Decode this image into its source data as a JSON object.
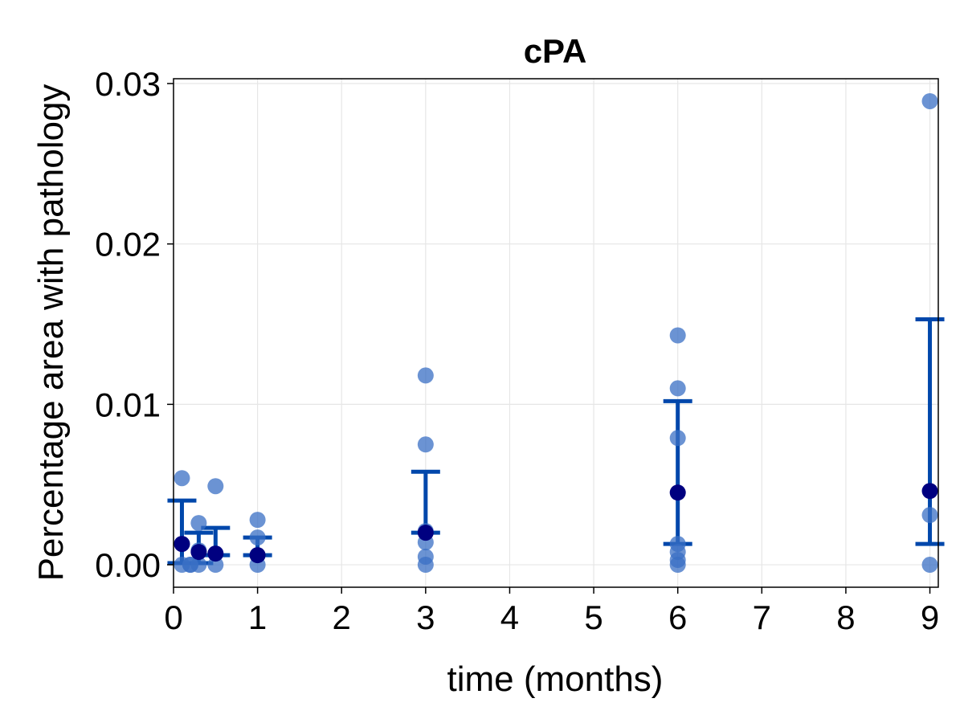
{
  "chart_data": {
    "type": "scatter",
    "title": "cPA",
    "xlabel": "time (months)",
    "ylabel": "Percentage area with pathology",
    "xlim": [
      0,
      9.1
    ],
    "ylim": [
      -0.0014,
      0.0303
    ],
    "xticks": [
      0,
      1,
      2,
      3,
      4,
      5,
      6,
      7,
      8,
      9
    ],
    "xtick_labels": [
      "0",
      "1",
      "2",
      "3",
      "4",
      "5",
      "6",
      "7",
      "8",
      "9"
    ],
    "yticks": [
      0.0,
      0.01,
      0.02,
      0.03
    ],
    "ytick_labels": [
      "0.00",
      "0.01",
      "0.02",
      "0.03"
    ],
    "grid": true,
    "legend": false,
    "colors": {
      "points": "#3a6fc4",
      "means": "#000080",
      "error_bars": "#0047ab",
      "grid": "#e6e6e6"
    },
    "series": [
      {
        "role": "individual",
        "points": [
          {
            "x": 0.1,
            "y": 0.0054
          },
          {
            "x": 0.1,
            "y": 0.0013
          },
          {
            "x": 0.1,
            "y": 0.0
          },
          {
            "x": 0.2,
            "y": 0.0
          },
          {
            "x": 0.2,
            "y": 0.0
          },
          {
            "x": 0.3,
            "y": 0.0026
          },
          {
            "x": 0.3,
            "y": 0.0009
          },
          {
            "x": 0.3,
            "y": 0.0
          },
          {
            "x": 0.5,
            "y": 0.0049
          },
          {
            "x": 0.5,
            "y": 0.0007
          },
          {
            "x": 0.5,
            "y": 0.0
          },
          {
            "x": 1,
            "y": 0.0028
          },
          {
            "x": 1,
            "y": 0.0017
          },
          {
            "x": 1,
            "y": 0.0006
          },
          {
            "x": 1,
            "y": 0.0
          },
          {
            "x": 3,
            "y": 0.0118
          },
          {
            "x": 3,
            "y": 0.0075
          },
          {
            "x": 3,
            "y": 0.0021
          },
          {
            "x": 3,
            "y": 0.0014
          },
          {
            "x": 3,
            "y": 0.0005
          },
          {
            "x": 3,
            "y": 0.0
          },
          {
            "x": 6,
            "y": 0.0143
          },
          {
            "x": 6,
            "y": 0.011
          },
          {
            "x": 6,
            "y": 0.0079
          },
          {
            "x": 6,
            "y": 0.0013
          },
          {
            "x": 6,
            "y": 0.0008
          },
          {
            "x": 6,
            "y": 0.0003
          },
          {
            "x": 6,
            "y": 0.0
          },
          {
            "x": 9,
            "y": 0.0289
          },
          {
            "x": 9,
            "y": 0.0031
          },
          {
            "x": 9,
            "y": 0.0
          }
        ]
      },
      {
        "role": "mean_with_error",
        "points": [
          {
            "x": 0.1,
            "mean": 0.0013,
            "low": 0.0001,
            "high": 0.004
          },
          {
            "x": 0.3,
            "mean": 0.0008,
            "low": 0.0001,
            "high": 0.002
          },
          {
            "x": 0.5,
            "mean": 0.0007,
            "low": 0.0006,
            "high": 0.0023
          },
          {
            "x": 1,
            "mean": 0.0006,
            "low": 0.0006,
            "high": 0.0017
          },
          {
            "x": 3,
            "mean": 0.002,
            "low": 0.002,
            "high": 0.0058
          },
          {
            "x": 6,
            "mean": 0.0045,
            "low": 0.0013,
            "high": 0.0102
          },
          {
            "x": 9,
            "mean": 0.0046,
            "low": 0.0013,
            "high": 0.0153
          }
        ]
      }
    ]
  }
}
